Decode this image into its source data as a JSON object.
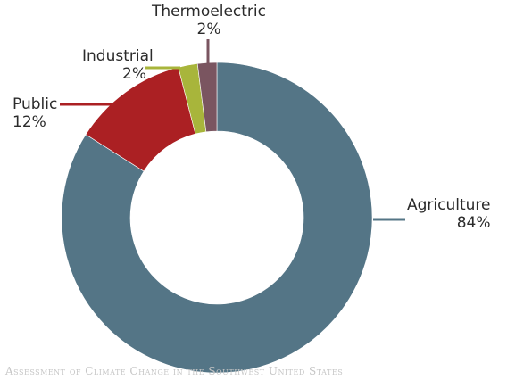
{
  "chart_data": {
    "type": "pie",
    "title": "",
    "categories": [
      "Agriculture",
      "Public",
      "Industrial",
      "Thermoelectric"
    ],
    "values": [
      84,
      12,
      2,
      2
    ],
    "value_labels": [
      "84%",
      "12%",
      "2%",
      "2%"
    ],
    "colors": [
      "#547586",
      "#ab2023",
      "#a8b53b",
      "#7a5560"
    ],
    "donut": true,
    "legend": "none"
  },
  "watermark": "Assessment of Climate Change in the Southwest United States"
}
